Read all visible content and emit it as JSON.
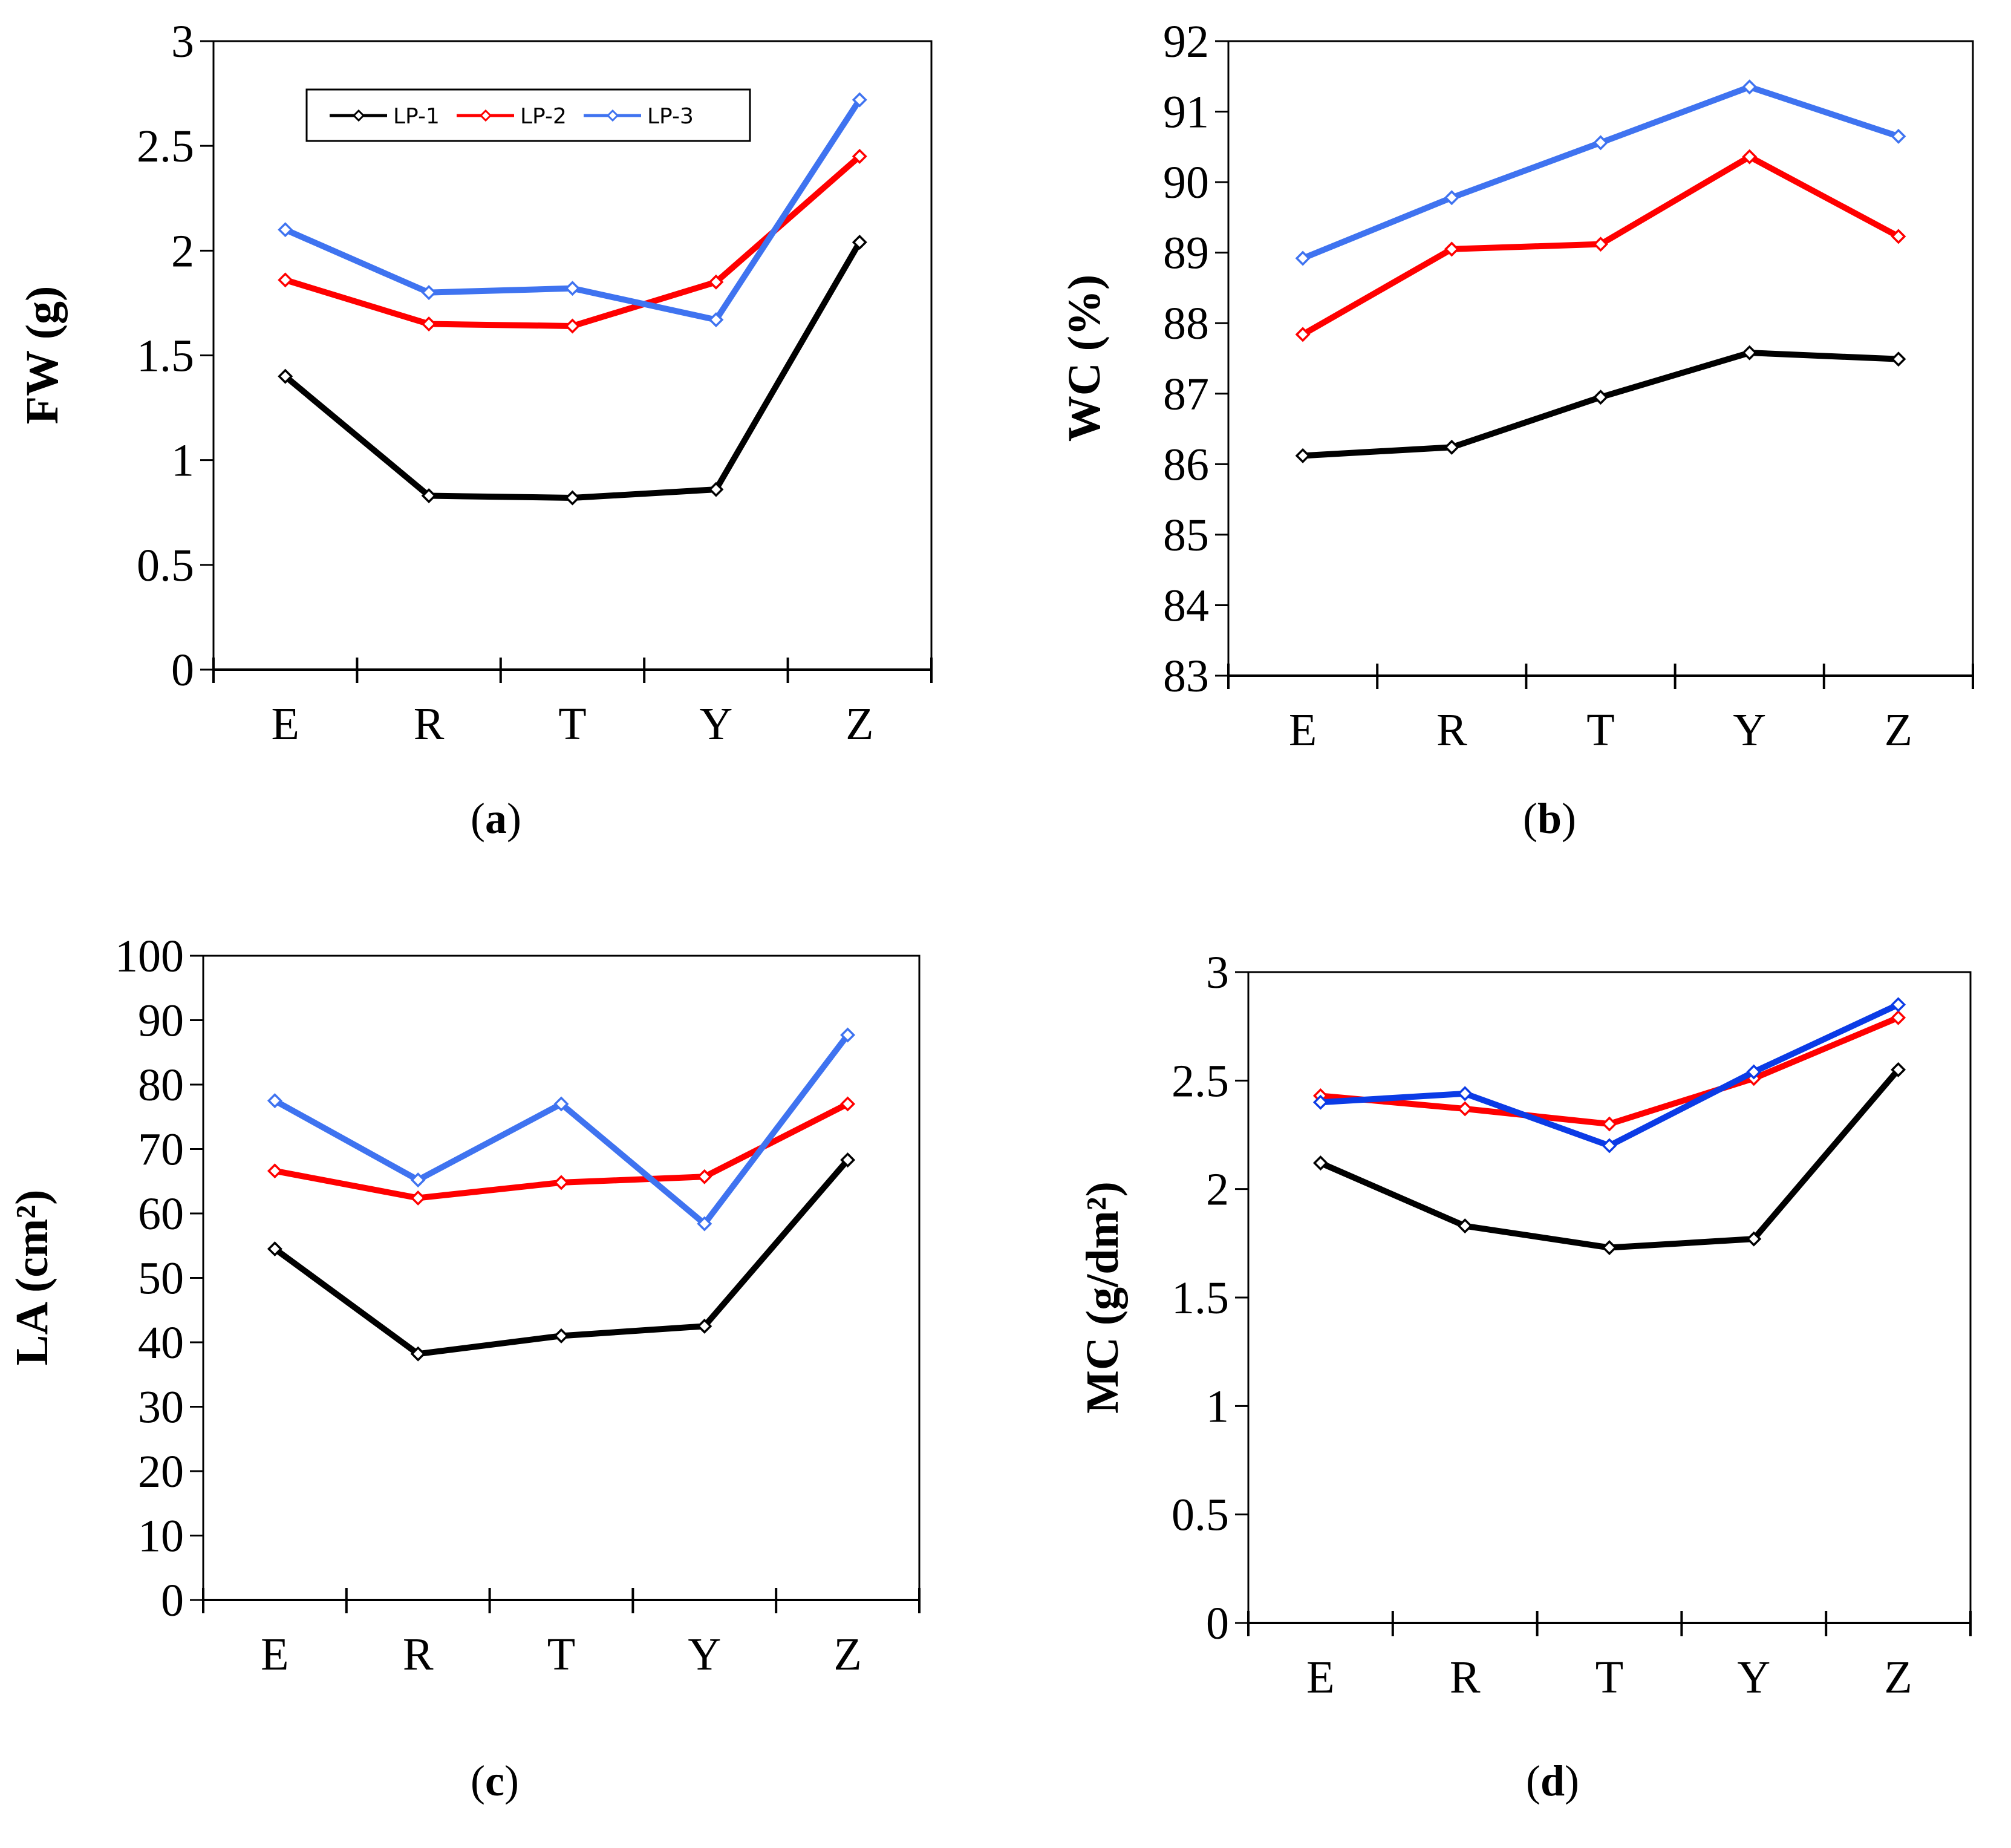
{
  "colors": {
    "LP-1": "#000000",
    "LP-2": "#ff0000",
    "LP-3": "#3f73f0",
    "LP-3-dark": "#0b3be6"
  },
  "chart_data": [
    {
      "type": "line",
      "panel": "(a)",
      "panel_letter": "a",
      "ylabel": "FW (g)",
      "xlabel": "",
      "categories": [
        "E",
        "R",
        "T",
        "Y",
        "Z"
      ],
      "ylim": [
        0,
        3
      ],
      "yticks": [
        0,
        0.5,
        1,
        1.5,
        2,
        2.5,
        3
      ],
      "ytick_labels": [
        "0",
        "0.5",
        "1",
        "1.5",
        "2",
        "2.5",
        "3"
      ],
      "legend": {
        "shown": true,
        "placement": "top-center",
        "entries": [
          "LP-1",
          "LP-2",
          "LP-3"
        ]
      },
      "series": [
        {
          "name": "LP-1",
          "values": [
            1.4,
            0.83,
            0.82,
            0.86,
            2.04
          ]
        },
        {
          "name": "LP-2",
          "values": [
            1.86,
            1.65,
            1.64,
            1.85,
            2.45
          ]
        },
        {
          "name": "LP-3",
          "values": [
            2.1,
            1.8,
            1.82,
            1.67,
            2.72
          ]
        }
      ]
    },
    {
      "type": "line",
      "panel": "(b)",
      "panel_letter": "b",
      "ylabel": "WC (%)",
      "xlabel": "",
      "categories": [
        "E",
        "R",
        "T",
        "Y",
        "Z"
      ],
      "ylim": [
        83,
        92
      ],
      "yticks": [
        83,
        84,
        85,
        86,
        87,
        88,
        89,
        90,
        91,
        92
      ],
      "ytick_labels": [
        "83",
        "84",
        "85",
        "86",
        "87",
        "88",
        "89",
        "90",
        "91",
        "92"
      ],
      "series": [
        {
          "name": "LP-1",
          "values": [
            86.12,
            86.24,
            86.95,
            87.58,
            87.49
          ]
        },
        {
          "name": "LP-2",
          "values": [
            87.84,
            89.05,
            89.12,
            90.36,
            89.23
          ]
        },
        {
          "name": "LP-3",
          "values": [
            88.92,
            89.78,
            90.56,
            91.35,
            90.65
          ]
        }
      ]
    },
    {
      "type": "line",
      "panel": "(c)",
      "panel_letter": "c",
      "ylabel": "LA (cm²)",
      "xlabel": "",
      "categories": [
        "E",
        "R",
        "T",
        "Y",
        "Z"
      ],
      "ylim": [
        0,
        100
      ],
      "yticks": [
        0,
        10,
        20,
        30,
        40,
        50,
        60,
        70,
        80,
        90,
        100
      ],
      "ytick_labels": [
        "0",
        "10",
        "20",
        "30",
        "40",
        "50",
        "60",
        "70",
        "80",
        "90",
        "100"
      ],
      "series": [
        {
          "name": "LP-1",
          "values": [
            54.5,
            38.2,
            41.0,
            42.5,
            68.3
          ]
        },
        {
          "name": "LP-2",
          "values": [
            66.6,
            62.4,
            64.8,
            65.7,
            77.0
          ]
        },
        {
          "name": "LP-3",
          "values": [
            77.5,
            65.2,
            77.0,
            58.4,
            87.7
          ]
        }
      ]
    },
    {
      "type": "line",
      "panel": "(d)",
      "panel_letter": "d",
      "ylabel": "MC (g/dm²)",
      "xlabel": "",
      "categories": [
        "E",
        "R",
        "T",
        "Y",
        "Z"
      ],
      "ylim": [
        0,
        3
      ],
      "yticks": [
        0,
        0.5,
        1,
        1.5,
        2,
        2.5,
        3
      ],
      "ytick_labels": [
        "0",
        "0.5",
        "1",
        "1.5",
        "2",
        "2.5",
        "3"
      ],
      "series": [
        {
          "name": "LP-1",
          "values": [
            2.12,
            1.83,
            1.73,
            1.77,
            2.55
          ]
        },
        {
          "name": "LP-2",
          "values": [
            2.43,
            2.37,
            2.3,
            2.51,
            2.79
          ]
        },
        {
          "name": "LP-3",
          "values": [
            2.4,
            2.44,
            2.2,
            2.54,
            2.85
          ]
        }
      ]
    }
  ]
}
